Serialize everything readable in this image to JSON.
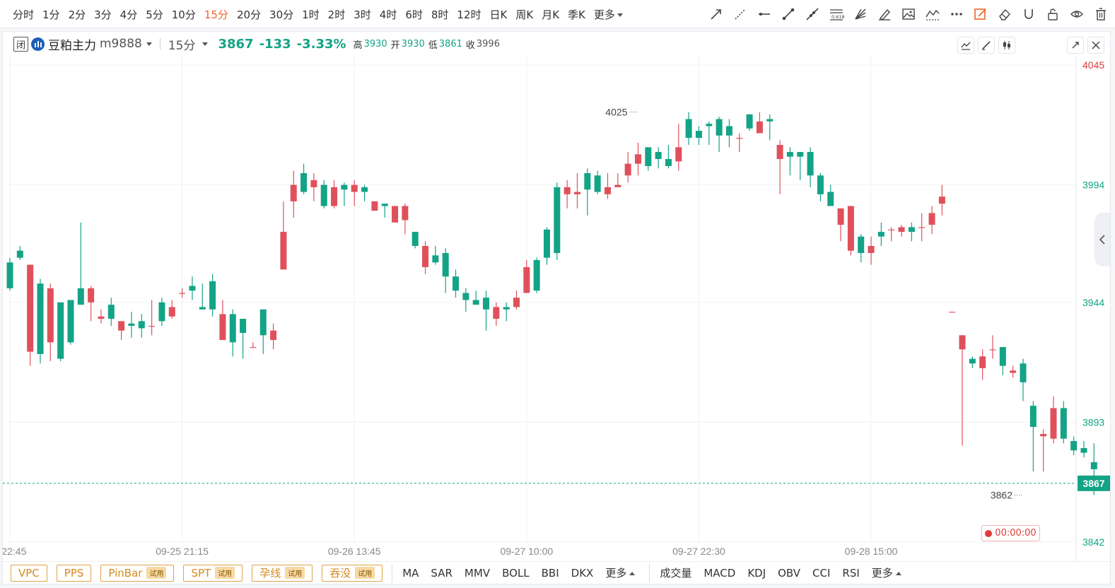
{
  "timeframes": [
    "分时",
    "1分",
    "2分",
    "3分",
    "4分",
    "5分",
    "10分",
    "15分",
    "20分",
    "30分",
    "1时",
    "2时",
    "3时",
    "4时",
    "6时",
    "8时",
    "12时",
    "日K",
    "周K",
    "月K",
    "季K"
  ],
  "timeframe_more": "更多",
  "active_timeframe": "15分",
  "info": {
    "contract_name": "豆粕主力",
    "contract_code": "m9888",
    "period": "15分",
    "last": "3867",
    "change": "-133",
    "change_pct": "-3.33%",
    "high_label": "高",
    "high": "3930",
    "open_label": "开",
    "open": "3930",
    "low_label": "低",
    "low": "3861",
    "close_label": "收",
    "close": "3996"
  },
  "indicator_buttons": [
    {
      "label": "VPC",
      "trial": ""
    },
    {
      "label": "PPS",
      "trial": ""
    },
    {
      "label": "PinBar",
      "trial": "试用"
    },
    {
      "label": "SPT",
      "trial": "试用"
    },
    {
      "label": "孕线",
      "trial": "试用"
    },
    {
      "label": "吞没",
      "trial": "试用"
    }
  ],
  "main_indicators": [
    "MA",
    "SAR",
    "MMV",
    "BOLL",
    "BBI",
    "DKX"
  ],
  "main_more": "更多",
  "sub_indicators": [
    "成交量",
    "MACD",
    "KDJ",
    "OBV",
    "CCI",
    "RSI"
  ],
  "sub_more": "更多",
  "countdown": "00:00:00",
  "colors": {
    "up": "#e0505b",
    "down": "#13a386",
    "accent": "#f0632a",
    "axis_up": "#e03c3c",
    "axis": "#13a386"
  },
  "chart_data": {
    "type": "candlestick",
    "y_ticks": [
      4045,
      3994,
      3944,
      3893,
      3842
    ],
    "ylim": [
      3842,
      4045
    ],
    "current_price": 3867,
    "x_ticks": [
      {
        "label": "2 22:45",
        "index": 0
      },
      {
        "label": "09-25 21:15",
        "index": 17
      },
      {
        "label": "09-26 13:45",
        "index": 34
      },
      {
        "label": "09-27 10:00",
        "index": 51
      },
      {
        "label": "09-27 22:30",
        "index": 68
      },
      {
        "label": "09-28 15:00",
        "index": 85
      }
    ],
    "annotations": [
      {
        "text": "4025",
        "index": 62,
        "value": 4025
      },
      {
        "text": "3862",
        "index": 100,
        "value": 3862
      }
    ],
    "candles": [
      [
        3961,
        3950,
        3963,
        3949
      ],
      [
        3966,
        3963,
        3968,
        3962
      ],
      [
        3923,
        3960,
        3926,
        3917
      ],
      [
        3952,
        3922,
        3954,
        3918
      ],
      [
        3927,
        3950,
        3952,
        3919
      ],
      [
        3944,
        3920,
        3922,
        3919
      ],
      [
        3945,
        3927,
        3944,
        3926
      ],
      [
        3950,
        3943,
        3978,
        3943
      ],
      [
        3944,
        3950,
        3951,
        3936
      ],
      [
        3937,
        3938,
        3941,
        3935
      ],
      [
        3943,
        3937,
        3946,
        3934
      ],
      [
        3932,
        3936,
        3936,
        3928
      ],
      [
        3935,
        3934,
        3940,
        3929
      ],
      [
        3936,
        3933,
        3939,
        3929
      ],
      [
        3934,
        3934,
        3945,
        3930
      ],
      [
        3944,
        3936,
        3946,
        3934
      ],
      [
        3938,
        3942,
        3945,
        3937
      ],
      [
        3948,
        3948,
        3950,
        3946
      ],
      [
        3951,
        3949,
        3955,
        3945
      ],
      [
        3942,
        3941,
        3952,
        3941
      ],
      [
        3953,
        3941,
        3956,
        3938
      ],
      [
        3928,
        3939,
        3945,
        3928
      ],
      [
        3939,
        3927,
        3941,
        3921
      ],
      [
        3937,
        3931,
        3934,
        3920
      ],
      [
        3925,
        3925,
        3927,
        3925
      ],
      [
        3941,
        3930,
        3941,
        3922
      ],
      [
        3928,
        3932,
        3935,
        3924
      ],
      [
        3958,
        3974,
        3987,
        3958
      ],
      [
        3987,
        3994,
        4000,
        3980
      ],
      [
        3999,
        3991,
        4003,
        3990
      ],
      [
        3993,
        3996,
        3999,
        3987
      ],
      [
        3994,
        3985,
        3996,
        3984
      ],
      [
        3985,
        3993,
        3996,
        3984
      ],
      [
        3994,
        3992,
        3995,
        3985
      ],
      [
        3991,
        3994,
        3996,
        3985
      ],
      [
        3993,
        3991,
        3994,
        3987
      ],
      [
        3983,
        3987,
        3985,
        3985
      ],
      [
        3986,
        3985,
        3986,
        3980
      ],
      [
        3978,
        3985,
        3983,
        3979
      ],
      [
        3979,
        3985,
        3986,
        3973
      ],
      [
        3974,
        3968,
        3971,
        3967
      ],
      [
        3959,
        3968,
        3970,
        3956
      ],
      [
        3964,
        3961,
        3968,
        3960
      ],
      [
        3965,
        3955,
        3967,
        3948
      ],
      [
        3955,
        3949,
        3958,
        3946
      ],
      [
        3948,
        3945,
        3950,
        3940
      ],
      [
        3945,
        3943,
        3949,
        3945
      ],
      [
        3946,
        3941,
        3949,
        3932
      ],
      [
        3937,
        3942,
        3944,
        3934
      ],
      [
        3942,
        3941,
        3944,
        3936
      ],
      [
        3942,
        3946,
        3949,
        3941
      ],
      [
        3948,
        3959,
        3962,
        3948
      ],
      [
        3962,
        3949,
        3963,
        3948
      ],
      [
        3975,
        3963,
        3976,
        3960
      ],
      [
        3993,
        3965,
        3995,
        3962
      ],
      [
        3990,
        3993,
        3996,
        3984
      ],
      [
        3990,
        3991,
        3999,
        3984
      ],
      [
        3999,
        3992,
        4001,
        3981
      ],
      [
        3998,
        3991,
        4000,
        3990
      ],
      [
        3990,
        3993,
        3999,
        3988
      ],
      [
        3993,
        3994,
        3999,
        4002
      ],
      [
        3998,
        4003,
        4008,
        3995
      ],
      [
        4003,
        4007,
        4012,
        3998
      ],
      [
        4010,
        4002,
        4010,
        4000
      ],
      [
        4008,
        4005,
        4010,
        4001
      ],
      [
        4005,
        4002,
        4011,
        4001
      ],
      [
        4004,
        4010,
        4020,
        4000
      ],
      [
        4022,
        4014,
        4025,
        4011
      ],
      [
        4017,
        4014,
        4019,
        4011
      ],
      [
        4020,
        4019,
        4021,
        4011
      ],
      [
        4022,
        4015,
        4023,
        4008
      ],
      [
        4019,
        4015,
        4022,
        4010
      ],
      [
        4014,
        4014,
        4016,
        4008
      ],
      [
        4024,
        4018,
        4023,
        4017
      ],
      [
        4016,
        4021,
        4025,
        4018
      ],
      [
        4022,
        4021,
        4024,
        4013
      ],
      [
        4005,
        4011,
        4013,
        3990
      ],
      [
        4008,
        4006,
        4010,
        3998
      ],
      [
        4008,
        4006,
        4008,
        3996
      ],
      [
        4008,
        3998,
        4010,
        3993
      ],
      [
        3998,
        3990,
        3999,
        3987
      ],
      [
        3991,
        3985,
        3994,
        3986
      ],
      [
        3977,
        3984,
        3981,
        3970
      ],
      [
        3966,
        3985,
        3963,
        3964
      ],
      [
        3972,
        3965,
        3973,
        3961
      ],
      [
        3965,
        3968,
        3972,
        3960
      ],
      [
        3974,
        3972,
        3978,
        3968
      ],
      [
        3975,
        3975,
        3976,
        3970
      ],
      [
        3974,
        3976,
        3977,
        3972
      ],
      [
        3976,
        3974,
        3978,
        3970
      ],
      [
        3976,
        3976,
        3982,
        3970
      ],
      [
        3977,
        3982,
        3985,
        3973
      ],
      [
        3986,
        3989,
        3994,
        3981
      ],
      [
        3940,
        3940,
        3940,
        3940
      ],
      [
        3924,
        3930,
        3930,
        3883
      ],
      [
        3920,
        3918,
        3921,
        3916
      ],
      [
        3916,
        3921,
        3924,
        3911
      ],
      [
        3924,
        3924,
        3930,
        3920
      ],
      [
        3925,
        3917,
        3922,
        3913
      ],
      [
        3914,
        3915,
        3917,
        3912
      ],
      [
        3918,
        3910,
        3920,
        3902
      ],
      [
        3900,
        3891,
        3902,
        3872
      ],
      [
        3887,
        3888,
        3890,
        3872
      ],
      [
        3886,
        3899,
        3904,
        3884
      ],
      [
        3899,
        3886,
        3902,
        3884
      ],
      [
        3885,
        3881,
        3887,
        3879
      ],
      [
        3882,
        3880,
        3885,
        3878
      ],
      [
        3876,
        3873,
        3884,
        3862
      ]
    ]
  }
}
